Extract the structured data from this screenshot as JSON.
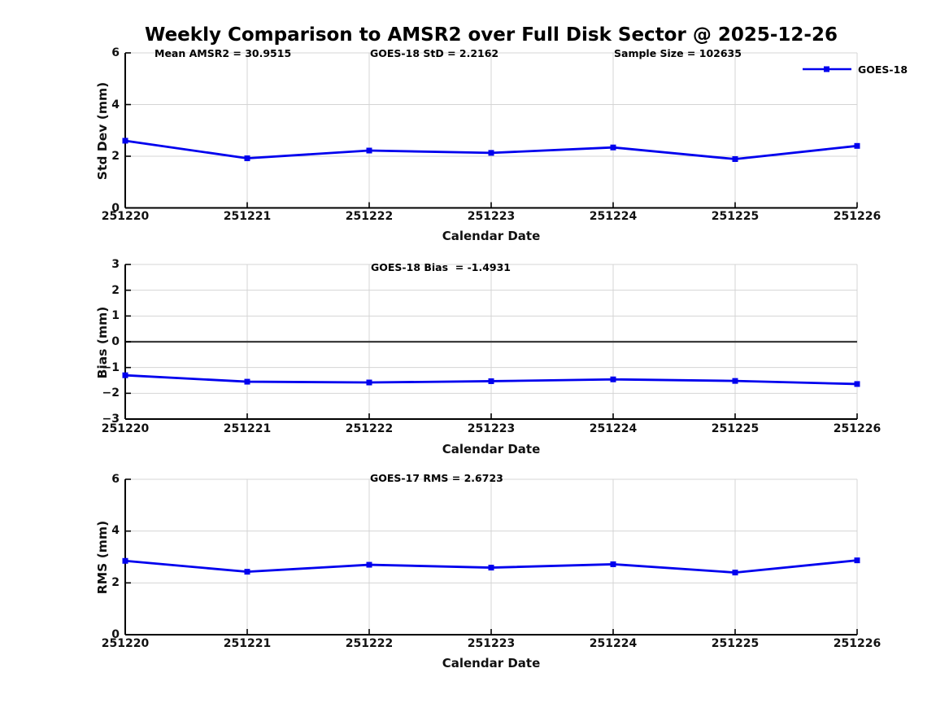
{
  "figure": {
    "title": "Weekly Comparison to AMSR2 over Full Disk Sector @ 2025-12-26",
    "background": "#ffffff"
  },
  "legend": {
    "label": "GOES-18",
    "line_color": "#0000EE",
    "marker": "square"
  },
  "colors": {
    "series_blue": "#0000EE",
    "grid": "#d4d4d4",
    "spine": "#000000",
    "zero_line": "#3c3c3c",
    "text": "#000000"
  },
  "chart_data": [
    {
      "type": "line",
      "name": "std-dev-chart",
      "annotations": [
        "Mean AMSR2 = 30.9515",
        "GOES-18 StD = 2.2162",
        "Sample Size = 102635"
      ],
      "xlabel": "Calendar Date",
      "ylabel": "Std Dev (mm)",
      "categories": [
        "251220",
        "251221",
        "251222",
        "251223",
        "251224",
        "251225",
        "251226"
      ],
      "series": [
        {
          "name": "GOES-18",
          "color": "#0000EE",
          "marker": "square",
          "values": [
            2.6,
            1.92,
            2.22,
            2.13,
            2.34,
            1.89,
            2.4
          ]
        }
      ],
      "ylim": [
        0,
        6
      ],
      "yticks": [
        0,
        2,
        4,
        6
      ],
      "grid": true,
      "zero_line": false,
      "legend_position": "top-right"
    },
    {
      "type": "line",
      "name": "bias-chart",
      "annotations": [
        "GOES-18 Bias  = -1.4931"
      ],
      "xlabel": "Calendar Date",
      "ylabel": "Bias (mm)",
      "categories": [
        "251220",
        "251221",
        "251222",
        "251223",
        "251224",
        "251225",
        "251226"
      ],
      "series": [
        {
          "name": "GOES-18",
          "color": "#0000EE",
          "marker": "square",
          "values": [
            -1.3,
            -1.55,
            -1.58,
            -1.53,
            -1.46,
            -1.52,
            -1.64
          ]
        }
      ],
      "ylim": [
        -3,
        3
      ],
      "yticks": [
        -3,
        -2,
        -1,
        0,
        1,
        2,
        3
      ],
      "grid": true,
      "zero_line": true,
      "legend_position": "none"
    },
    {
      "type": "line",
      "name": "rms-chart",
      "annotations": [
        "GOES-17 RMS = 2.6723"
      ],
      "xlabel": "Calendar Date",
      "ylabel": "RMS (mm)",
      "categories": [
        "251220",
        "251221",
        "251222",
        "251223",
        "251224",
        "251225",
        "251226"
      ],
      "series": [
        {
          "name": "GOES-18",
          "color": "#0000EE",
          "marker": "square",
          "values": [
            2.85,
            2.43,
            2.7,
            2.59,
            2.72,
            2.4,
            2.87
          ]
        }
      ],
      "ylim": [
        0,
        6
      ],
      "yticks": [
        0,
        2,
        4,
        6
      ],
      "grid": true,
      "zero_line": false,
      "legend_position": "none"
    }
  ]
}
